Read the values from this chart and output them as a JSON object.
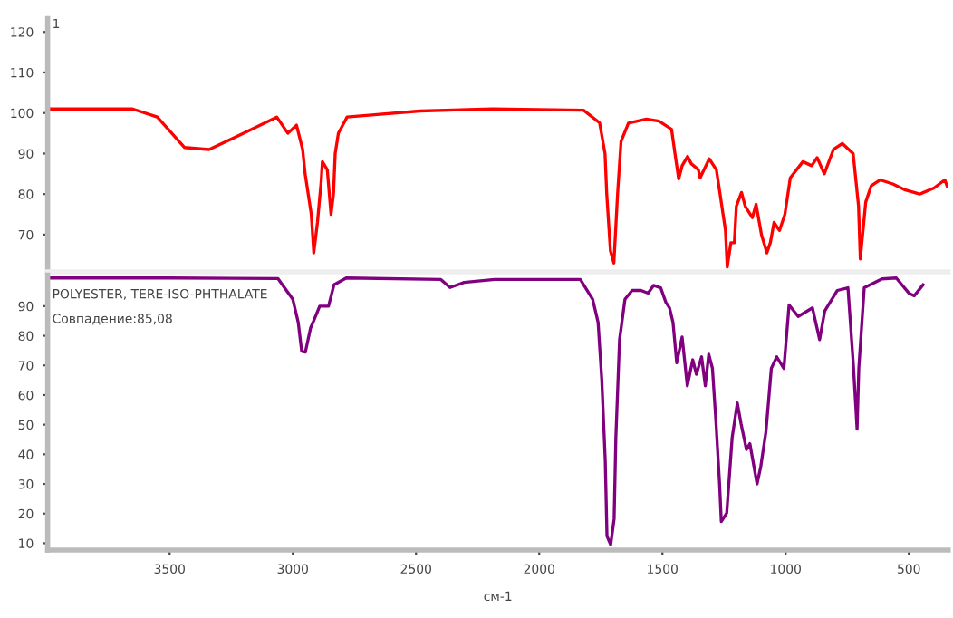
{
  "chart_data": [
    {
      "type": "line",
      "annotations": [
        "1"
      ],
      "xlim": [
        3995,
        340
      ],
      "ylim": [
        60.8,
        123.3
      ],
      "yticks": [
        70,
        80,
        90,
        100,
        110,
        120
      ],
      "tick_labels": "y",
      "grid": false,
      "marker": "none",
      "line_style": "solid",
      "x": [
        3995,
        3650,
        3550,
        3440,
        3340,
        3200,
        3065,
        3020,
        2985,
        2960,
        2950,
        2925,
        2915,
        2900,
        2885,
        2880,
        2860,
        2845,
        2835,
        2828,
        2815,
        2780,
        2680,
        2485,
        2190,
        1820,
        1755,
        1733,
        1726,
        1711,
        1697,
        1682,
        1668,
        1638,
        1565,
        1514,
        1463,
        1449,
        1434,
        1420,
        1398,
        1383,
        1354,
        1347,
        1310,
        1281,
        1266,
        1244,
        1237,
        1222,
        1208,
        1200,
        1179,
        1164,
        1135,
        1120,
        1098,
        1076,
        1062,
        1047,
        1025,
        1003,
        981,
        930,
        894,
        872,
        843,
        806,
        770,
        726,
        704,
        697,
        675,
        653,
        617,
        565,
        514,
        456,
        398,
        354,
        345
      ],
      "series": [
        {
          "color": "#ff0000",
          "values": [
            101,
            101,
            99,
            91.5,
            91,
            95,
            99,
            95,
            97,
            91,
            85,
            75,
            65.5,
            73,
            83,
            88,
            86,
            75,
            80,
            90,
            95,
            99,
            99.5,
            100.5,
            101,
            100.7,
            97.6,
            90,
            80,
            66,
            63,
            80,
            93,
            97.5,
            98.5,
            98,
            96,
            90,
            83.7,
            87,
            89.3,
            87.5,
            86,
            84,
            88.7,
            86,
            80,
            71,
            62,
            68,
            68,
            77,
            80.4,
            77,
            74.2,
            77.5,
            70,
            65.5,
            68,
            73,
            71,
            75,
            84,
            88,
            87,
            89,
            85,
            91,
            92.5,
            90,
            77,
            64,
            78,
            82,
            83.5,
            82.5,
            81,
            80,
            81.5,
            83.5,
            82
          ]
        }
      ]
    },
    {
      "type": "line",
      "xlabel": "см-1",
      "annotations": [
        "POLYESTER, TERE-ISO-PHTHALATE",
        "Совпадение:85,08"
      ],
      "xlim": [
        3995,
        340
      ],
      "ylim": [
        7.7,
        100.5
      ],
      "xticks": [
        3500,
        3000,
        2500,
        2000,
        1500,
        1000,
        500
      ],
      "yticks": [
        10,
        20,
        30,
        40,
        50,
        60,
        70,
        80,
        90
      ],
      "grid": false,
      "marker": "none",
      "line_style": "solid",
      "x": [
        3995,
        3500,
        3060,
        3000,
        2978,
        2964,
        2949,
        2928,
        2913,
        2891,
        2855,
        2833,
        2783,
        2399,
        2362,
        2305,
        2181,
        1833,
        1783,
        1761,
        1746,
        1732,
        1725,
        1710,
        1696,
        1689,
        1674,
        1652,
        1623,
        1587,
        1558,
        1536,
        1507,
        1486,
        1471,
        1457,
        1442,
        1420,
        1399,
        1377,
        1362,
        1341,
        1326,
        1312,
        1297,
        1283,
        1268,
        1261,
        1239,
        1217,
        1196,
        1181,
        1159,
        1145,
        1116,
        1101,
        1080,
        1058,
        1036,
        1007,
        986,
        949,
        891,
        862,
        841,
        790,
        747,
        725,
        710,
        703,
        681,
        609,
        551,
        500,
        478,
        442
      ],
      "series": [
        {
          "color": "#800080",
          "values": [
            99.5,
            99.5,
            99.3,
            92.3,
            84.5,
            74.8,
            74.5,
            82.6,
            85.5,
            90,
            90,
            97.2,
            99.5,
            99,
            96.3,
            98,
            99,
            99,
            92.3,
            84.5,
            65,
            37.8,
            12.4,
            9.5,
            18.2,
            45.6,
            78.7,
            92.3,
            95.3,
            95.3,
            94.4,
            97,
            96.2,
            91.3,
            89.4,
            84.5,
            70.9,
            79.6,
            63.1,
            71.9,
            67,
            72.9,
            63.1,
            73.8,
            69,
            51.4,
            30,
            17.3,
            20.2,
            45.6,
            57.3,
            50.4,
            41.6,
            43.6,
            30,
            35.8,
            47.5,
            69,
            72.9,
            69,
            90.4,
            86.5,
            89.4,
            78.7,
            88.4,
            95.3,
            96.2,
            70,
            48.5,
            69,
            96.2,
            99.2,
            99.5,
            94.4,
            93.5,
            97.2
          ]
        }
      ]
    }
  ]
}
